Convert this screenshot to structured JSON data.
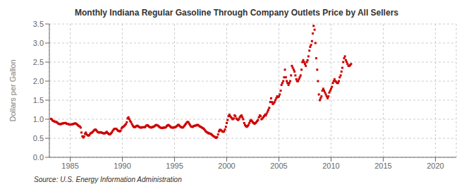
{
  "chart_data": {
    "type": "scatter",
    "title": "Monthly Indiana Regular Gasoline Through Company Outlets Price by All Sellers",
    "y_label": "Dollars per Gallon",
    "source": "Source: U.S. Energy Information Administration",
    "color": "#CC0000",
    "marker": "square",
    "grid": true,
    "xlim": [
      1983.0,
      2022.0
    ],
    "ylim": [
      0.0,
      3.5
    ],
    "xticks": [
      1985,
      1990,
      1995,
      2000,
      2005,
      2010,
      2015,
      2020
    ],
    "yticks": [
      {
        "value": 0.0,
        "label": "0.0"
      },
      0.5,
      {
        "value": 1.0,
        "label": "1.0"
      },
      1.5,
      {
        "value": 2.0,
        "label": "2.0"
      },
      2.5,
      {
        "value": 3.0,
        "label": "3.0"
      },
      3.5
    ],
    "x": [
      1983.17,
      1983.25,
      1983.33,
      1983.42,
      1983.5,
      1983.58,
      1983.67,
      1983.75,
      1983.83,
      1983.92,
      1984.0,
      1984.08,
      1984.17,
      1984.25,
      1984.33,
      1984.42,
      1984.5,
      1984.58,
      1984.67,
      1984.75,
      1984.83,
      1984.92,
      1985.0,
      1985.08,
      1985.17,
      1985.25,
      1985.33,
      1985.42,
      1985.5,
      1985.58,
      1985.67,
      1985.75,
      1985.83,
      1985.92,
      1986.0,
      1986.08,
      1986.17,
      1986.25,
      1986.33,
      1986.42,
      1986.5,
      1986.58,
      1986.67,
      1986.75,
      1986.83,
      1986.92,
      1987.0,
      1987.08,
      1987.17,
      1987.25,
      1987.33,
      1987.42,
      1987.5,
      1987.58,
      1987.67,
      1987.75,
      1987.83,
      1987.92,
      1988.0,
      1988.08,
      1988.17,
      1988.25,
      1988.33,
      1988.42,
      1988.5,
      1988.58,
      1988.67,
      1988.75,
      1988.83,
      1988.92,
      1989.0,
      1989.08,
      1989.17,
      1989.25,
      1989.33,
      1989.42,
      1989.5,
      1989.58,
      1989.67,
      1989.75,
      1989.83,
      1989.92,
      1990.0,
      1990.08,
      1990.17,
      1990.25,
      1990.33,
      1990.42,
      1990.5,
      1990.58,
      1990.67,
      1990.75,
      1990.83,
      1990.92,
      1991.0,
      1991.08,
      1991.17,
      1991.25,
      1991.33,
      1991.42,
      1991.5,
      1991.58,
      1991.67,
      1991.75,
      1991.83,
      1991.92,
      1992.0,
      1992.08,
      1992.17,
      1992.25,
      1992.33,
      1992.42,
      1992.5,
      1992.58,
      1992.67,
      1992.75,
      1992.83,
      1992.92,
      1993.0,
      1993.08,
      1993.17,
      1993.25,
      1993.33,
      1993.42,
      1993.5,
      1993.58,
      1993.67,
      1993.75,
      1993.83,
      1993.92,
      1994.0,
      1994.08,
      1994.17,
      1994.25,
      1994.33,
      1994.42,
      1994.5,
      1994.58,
      1994.67,
      1994.75,
      1994.83,
      1994.92,
      1995.0,
      1995.08,
      1995.17,
      1995.25,
      1995.33,
      1995.42,
      1995.5,
      1995.58,
      1995.67,
      1995.75,
      1995.83,
      1995.92,
      1996.0,
      1996.08,
      1996.17,
      1996.25,
      1996.33,
      1996.42,
      1996.5,
      1996.58,
      1996.67,
      1996.75,
      1996.83,
      1996.92,
      1997.0,
      1997.08,
      1997.17,
      1997.25,
      1997.33,
      1997.42,
      1997.5,
      1997.58,
      1997.67,
      1997.75,
      1997.83,
      1997.92,
      1998.0,
      1998.08,
      1998.17,
      1998.25,
      1998.33,
      1998.42,
      1998.5,
      1998.58,
      1998.67,
      1998.75,
      1998.83,
      1998.92,
      1999.0,
      1999.08,
      1999.17,
      1999.25,
      1999.33,
      1999.42,
      1999.5,
      1999.58,
      1999.67,
      1999.75,
      1999.83,
      1999.92,
      2000.0,
      2000.08,
      2000.17,
      2000.25,
      2000.33,
      2000.42,
      2000.5,
      2000.58,
      2000.67,
      2000.75,
      2000.83,
      2000.92,
      2001.0,
      2001.08,
      2001.17,
      2001.25,
      2001.33,
      2001.42,
      2001.5,
      2001.58,
      2001.67,
      2001.75,
      2001.83,
      2001.92,
      2002.0,
      2002.08,
      2002.17,
      2002.25,
      2002.33,
      2002.42,
      2002.5,
      2002.58,
      2002.67,
      2002.75,
      2002.83,
      2002.92,
      2003.0,
      2003.08,
      2003.17,
      2003.25,
      2003.33,
      2003.42,
      2003.5,
      2003.58,
      2003.67,
      2003.75,
      2003.83,
      2003.92,
      2004.0,
      2004.08,
      2004.17,
      2004.25,
      2004.33,
      2004.42,
      2004.5,
      2004.58,
      2004.67,
      2004.75,
      2004.83,
      2004.92,
      2005.0,
      2005.08,
      2005.17,
      2005.25,
      2005.33,
      2005.42,
      2005.5,
      2005.58,
      2005.67,
      2005.75,
      2005.83,
      2005.92,
      2006.0,
      2006.08,
      2006.17,
      2006.25,
      2006.33,
      2006.42,
      2006.5,
      2006.58,
      2006.67,
      2006.75,
      2006.83,
      2006.92,
      2007.0,
      2007.08,
      2007.17,
      2007.25,
      2007.33,
      2007.42,
      2007.5,
      2007.58,
      2007.67,
      2007.75,
      2007.83,
      2007.92,
      2008.0,
      2008.08,
      2008.17,
      2008.25,
      2008.33,
      2008.42,
      2008.5,
      2008.58,
      2008.67,
      2008.75,
      2008.83,
      2008.92,
      2009.0,
      2009.08,
      2009.17,
      2009.25,
      2009.33,
      2009.42,
      2009.5,
      2009.58,
      2009.67,
      2009.75,
      2009.83,
      2009.92,
      2010.0,
      2010.08,
      2010.17,
      2010.25,
      2010.33,
      2010.42,
      2010.5,
      2010.58,
      2010.67,
      2010.75,
      2010.83,
      2010.92,
      2011.0,
      2011.08,
      2011.17,
      2011.25,
      2011.33,
      2011.42,
      2011.5,
      2011.58,
      2011.67,
      2011.75,
      2011.83,
      2011.92
    ],
    "values": [
      1.01,
      0.99,
      0.96,
      0.95,
      0.94,
      0.93,
      0.93,
      0.91,
      0.89,
      0.88,
      0.87,
      0.87,
      0.88,
      0.89,
      0.89,
      0.9,
      0.9,
      0.9,
      0.88,
      0.88,
      0.87,
      0.86,
      0.86,
      0.86,
      0.87,
      0.87,
      0.88,
      0.89,
      0.89,
      0.88,
      0.86,
      0.84,
      0.82,
      0.81,
      0.78,
      0.65,
      0.55,
      0.52,
      0.55,
      0.62,
      0.65,
      0.6,
      0.58,
      0.57,
      0.58,
      0.62,
      0.64,
      0.65,
      0.67,
      0.7,
      0.72,
      0.73,
      0.71,
      0.68,
      0.66,
      0.65,
      0.65,
      0.66,
      0.65,
      0.64,
      0.63,
      0.63,
      0.63,
      0.65,
      0.67,
      0.64,
      0.62,
      0.6,
      0.61,
      0.63,
      0.66,
      0.7,
      0.73,
      0.75,
      0.75,
      0.75,
      0.72,
      0.7,
      0.69,
      0.68,
      0.7,
      0.76,
      0.79,
      0.8,
      0.82,
      0.85,
      0.87,
      0.92,
      1.02,
      1.05,
      1.0,
      0.95,
      0.92,
      0.87,
      0.83,
      0.8,
      0.79,
      0.8,
      0.82,
      0.83,
      0.82,
      0.8,
      0.79,
      0.78,
      0.78,
      0.79,
      0.79,
      0.79,
      0.79,
      0.82,
      0.84,
      0.84,
      0.82,
      0.8,
      0.79,
      0.78,
      0.79,
      0.8,
      0.8,
      0.82,
      0.84,
      0.85,
      0.84,
      0.83,
      0.81,
      0.79,
      0.78,
      0.77,
      0.77,
      0.78,
      0.78,
      0.78,
      0.79,
      0.82,
      0.84,
      0.85,
      0.83,
      0.81,
      0.79,
      0.78,
      0.78,
      0.78,
      0.79,
      0.79,
      0.81,
      0.83,
      0.85,
      0.85,
      0.82,
      0.8,
      0.79,
      0.78,
      0.79,
      0.82,
      0.85,
      0.88,
      0.91,
      0.93,
      0.92,
      0.88,
      0.84,
      0.81,
      0.8,
      0.8,
      0.82,
      0.83,
      0.83,
      0.84,
      0.85,
      0.85,
      0.83,
      0.81,
      0.8,
      0.79,
      0.77,
      0.76,
      0.74,
      0.71,
      0.68,
      0.66,
      0.65,
      0.63,
      0.63,
      0.62,
      0.61,
      0.59,
      0.57,
      0.55,
      0.54,
      0.52,
      0.51,
      0.53,
      0.6,
      0.68,
      0.72,
      0.72,
      0.7,
      0.68,
      0.67,
      0.68,
      0.73,
      0.8,
      0.9,
      0.98,
      1.08,
      1.12,
      1.08,
      1.05,
      1.02,
      1.0,
      1.02,
      1.1,
      1.08,
      1.02,
      1.0,
      0.98,
      1.0,
      1.05,
      1.08,
      1.1,
      1.05,
      1.0,
      0.9,
      0.85,
      0.82,
      0.8,
      0.82,
      0.85,
      0.9,
      0.95,
      0.98,
      0.95,
      0.92,
      0.9,
      0.88,
      0.9,
      0.92,
      0.95,
      0.98,
      1.05,
      1.1,
      1.08,
      1.0,
      1.02,
      1.05,
      1.08,
      1.12,
      1.1,
      1.15,
      1.2,
      1.25,
      1.3,
      1.45,
      1.55,
      1.45,
      1.4,
      1.42,
      1.45,
      1.5,
      1.55,
      1.6,
      1.58,
      1.6,
      1.65,
      1.75,
      1.9,
      1.95,
      2.0,
      2.1,
      2.3,
      2.1,
      2.0,
      1.95,
      1.9,
      1.95,
      2.0,
      2.15,
      2.4,
      2.35,
      2.3,
      2.25,
      2.15,
      2.05,
      2.0,
      2.0,
      2.05,
      2.1,
      2.15,
      2.3,
      2.5,
      2.55,
      2.5,
      2.45,
      2.4,
      2.5,
      2.55,
      2.65,
      2.8,
      2.9,
      2.95,
      3.05,
      3.25,
      3.45,
      3.35,
      3.0,
      2.6,
      2.3,
      2.0,
      1.65,
      1.5,
      1.55,
      1.6,
      1.75,
      1.8,
      1.75,
      1.7,
      1.65,
      1.6,
      1.55,
      1.6,
      1.7,
      1.75,
      1.8,
      1.85,
      1.95,
      2.0,
      2.05,
      2.0,
      1.98,
      1.95,
      1.95,
      2.0,
      2.1,
      2.15,
      2.25,
      2.35,
      2.5,
      2.6,
      2.65,
      2.55,
      2.5,
      2.45,
      2.4,
      2.4,
      2.42,
      2.45
    ]
  }
}
